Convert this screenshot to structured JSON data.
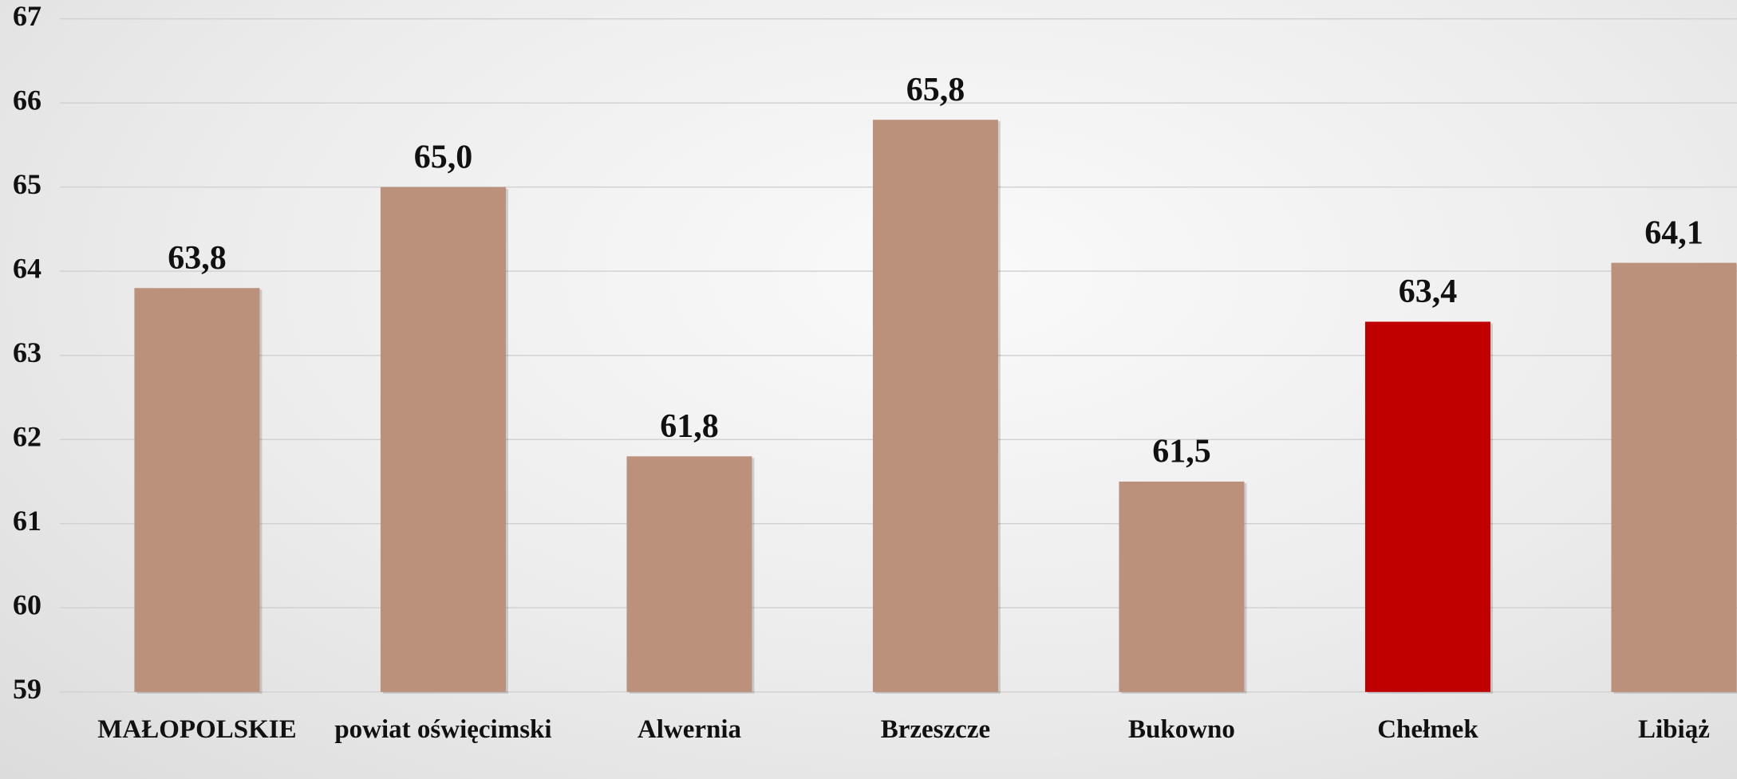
{
  "chart_data": {
    "type": "bar",
    "categories": [
      "MAŁOPOLSKIE",
      "powiat oświęcimski",
      "Alwernia",
      "Brzeszcze",
      "Bukowno",
      "Chełmek",
      "Libiąż"
    ],
    "values": [
      63.8,
      65.0,
      61.8,
      65.8,
      61.5,
      63.4,
      64.1
    ],
    "value_labels": [
      "63,8",
      "65,0",
      "61,8",
      "65,8",
      "61,5",
      "63,4",
      "64,1"
    ],
    "colors": [
      "#bc917b",
      "#bc917b",
      "#bc917b",
      "#bc917b",
      "#bc917b",
      "#c00000",
      "#bc917b"
    ],
    "ylim": [
      59,
      67
    ],
    "yticks": [
      59,
      60,
      61,
      62,
      63,
      64,
      65,
      66,
      67
    ],
    "grid": true
  }
}
